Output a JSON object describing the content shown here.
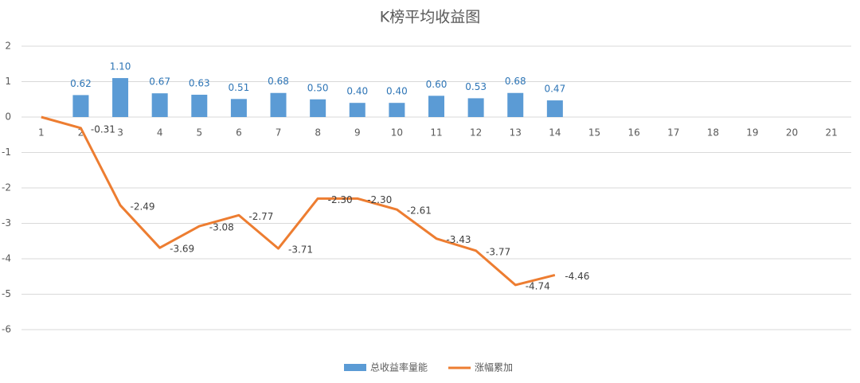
{
  "chart_data": {
    "type": "bar-line",
    "title": "K榜平均收益图",
    "categories": [
      "1",
      "2",
      "3",
      "4",
      "5",
      "6",
      "7",
      "8",
      "9",
      "10",
      "11",
      "12",
      "13",
      "14",
      "15",
      "16",
      "17",
      "18",
      "19",
      "20",
      "21"
    ],
    "series": [
      {
        "name": "总收益率量能",
        "type": "bar",
        "color": "#5b9bd5",
        "values": [
          null,
          0.62,
          1.1,
          0.67,
          0.63,
          0.51,
          0.68,
          0.5,
          0.4,
          0.4,
          0.6,
          0.53,
          0.68,
          0.47,
          null,
          null,
          null,
          null,
          null,
          null,
          null
        ],
        "value_labels": [
          null,
          "0.62",
          "1.10",
          "0.67",
          "0.63",
          "0.51",
          "0.68",
          "0.50",
          "0.40",
          "0.40",
          "0.60",
          "0.53",
          "0.68",
          "0.47",
          null,
          null,
          null,
          null,
          null,
          null,
          null
        ]
      },
      {
        "name": "涨幅累加",
        "type": "line",
        "color": "#ed7d31",
        "values": [
          0,
          -0.31,
          -2.49,
          -3.69,
          -3.08,
          -2.77,
          -3.71,
          -2.3,
          -2.3,
          -2.61,
          -3.43,
          -3.77,
          -4.74,
          -4.46,
          null,
          null,
          null,
          null,
          null,
          null,
          null
        ],
        "value_labels": [
          null,
          "-0.31",
          "-2.49",
          "-3.69",
          "-3.08",
          "-2.77",
          "-3.71",
          "-2.30",
          "-2.30",
          "-2.61",
          "-3.43",
          "-3.77",
          "-4.74",
          "-4.46",
          null,
          null,
          null,
          null,
          null,
          null,
          null
        ]
      }
    ],
    "ylim": [
      -6,
      2
    ],
    "yticks": [
      2,
      1,
      0,
      -1,
      -2,
      -3,
      -4,
      -5,
      -6
    ],
    "grid": true,
    "legend": "bottom"
  }
}
